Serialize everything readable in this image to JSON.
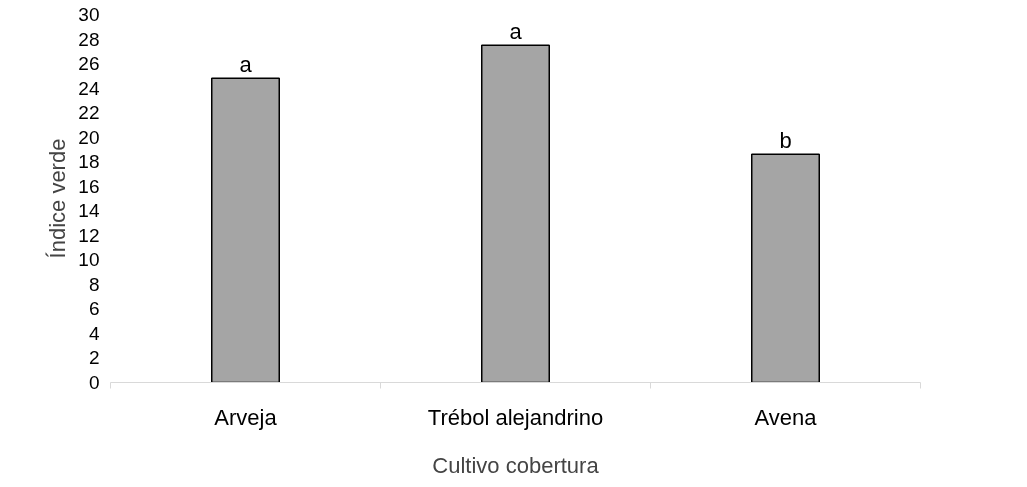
{
  "chart_data": {
    "type": "bar",
    "xlabel": "Cultivo cobertura",
    "ylabel": "Índice verde",
    "categories": [
      "Arveja",
      "Trébol alejandrino",
      "Avena"
    ],
    "values": [
      24.8,
      27.5,
      18.6
    ],
    "color": "#a5a5a5",
    "ylim": [
      0,
      30
    ],
    "yticks": [
      0,
      2,
      4,
      6,
      8,
      10,
      12,
      14,
      16,
      18,
      20,
      22,
      24,
      26,
      28,
      30
    ],
    "grid": false,
    "annotations": [
      {
        "text": "a",
        "x": "Arveja",
        "y": 24.8
      },
      {
        "text": "a",
        "x": "Trébol alejandrino",
        "y": 27.5
      },
      {
        "text": "b",
        "x": "Avena",
        "y": 18.6
      }
    ]
  }
}
